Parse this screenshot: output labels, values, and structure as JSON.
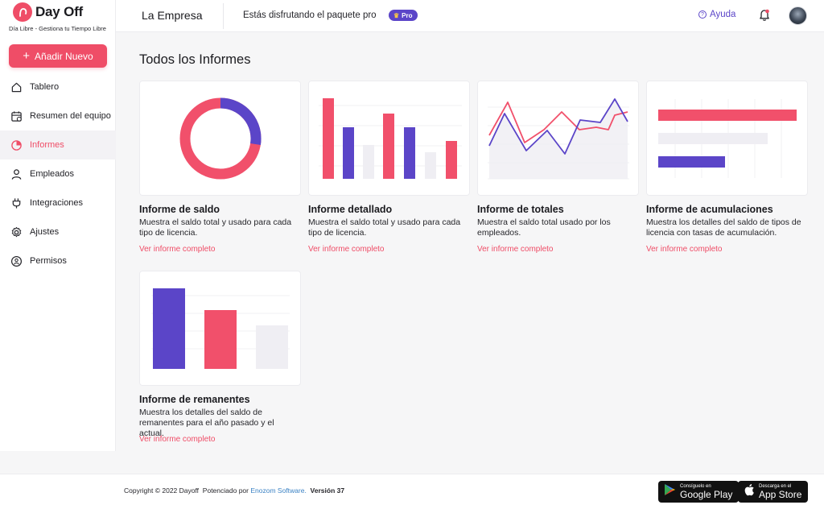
{
  "brand": {
    "name": "Day Off",
    "tagline": "Día Libre - Gestiona tu Tiempo Libre"
  },
  "sidebar": {
    "add_button": "Añadir Nuevo",
    "items": [
      {
        "label": "Tablero",
        "icon": "home-icon"
      },
      {
        "label": "Resumen del equipo",
        "icon": "calendar-icon"
      },
      {
        "label": "Informes",
        "icon": "pie-chart-icon",
        "active": true
      },
      {
        "label": "Empleados",
        "icon": "user-icon"
      },
      {
        "label": "Integraciones",
        "icon": "plug-icon"
      },
      {
        "label": "Ajustes",
        "icon": "gear-icon"
      },
      {
        "label": "Permisos",
        "icon": "shield-user-icon"
      }
    ]
  },
  "header": {
    "company": "La Empresa",
    "package_text": "Estás disfrutando el paquete pro",
    "pro_badge": "Pro",
    "help": "Ayuda"
  },
  "main": {
    "title": "Todos los Informes",
    "cards": [
      {
        "title": "Informe de saldo",
        "description": "Muestra el saldo total y usado para cada tipo de licencia.",
        "link": "Ver informe completo",
        "thumb": "donut"
      },
      {
        "title": "Informe detallado",
        "description": "Muestra el saldo total y usado para cada tipo de licencia.",
        "link": "Ver informe completo",
        "thumb": "bars"
      },
      {
        "title": "Informe de totales",
        "description": "Muestra el saldo total usado por los empleados.",
        "link": "Ver informe completo",
        "thumb": "lines"
      },
      {
        "title": "Informe de acumulaciones",
        "description": "Muestra los detalles del saldo de tipos de licencia con tasas de acumulación.",
        "link": "Ver informe completo",
        "thumb": "hbars"
      },
      {
        "title": "Informe de remanentes",
        "description": "Muestra los detalles del saldo de remanentes para el año pasado y el actual.",
        "link": "Ver informe completo",
        "thumb": "bars3"
      }
    ]
  },
  "footer": {
    "copyright": "Copyright © 2022 Dayoff",
    "powered_by": "Potenciado por",
    "company": "Enozom Software.",
    "version_label": "Versión",
    "version": "37",
    "google_small": "Consíguelo en",
    "google_big": "Google Play",
    "apple_small": "Descarga en el",
    "apple_big": "App Store"
  },
  "colors": {
    "accent": "#ef4d67",
    "purple": "#5b45c8",
    "light": "#efeef3"
  }
}
